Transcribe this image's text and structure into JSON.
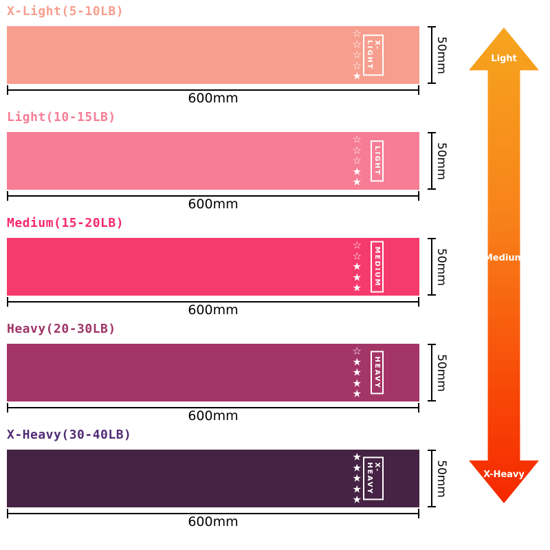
{
  "bands": [
    {
      "title": "X-Light(5-10LB)",
      "tag": "X-LIGHT",
      "color": "#f79e8e",
      "title_color": "#f79e8e",
      "stars_filled": 1,
      "stars_total": 5,
      "length_label": "600mm",
      "width_label": "50mm"
    },
    {
      "title": "Light(10-15LB)",
      "tag": "LIGHT",
      "color": "#f67d95",
      "title_color": "#f67d95",
      "stars_filled": 2,
      "stars_total": 5,
      "length_label": "600mm",
      "width_label": "50mm"
    },
    {
      "title": "Medium(15-20LB)",
      "tag": "MEDIUM",
      "color": "#f53a6c",
      "title_color": "#f5286b",
      "stars_filled": 3,
      "stars_total": 5,
      "length_label": "600mm",
      "width_label": "50mm"
    },
    {
      "title": "Heavy(20-30LB)",
      "tag": "HEAVY",
      "color": "#a43567",
      "title_color": "#9e3366",
      "stars_filled": 4,
      "stars_total": 5,
      "length_label": "600mm",
      "width_label": "50mm"
    },
    {
      "title": "X-Heavy(30-40LB)",
      "tag": "X-HEAVY",
      "color": "#462344",
      "title_color": "#512b75",
      "stars_filled": 5,
      "stars_total": 5,
      "length_label": "600mm",
      "width_label": "50mm"
    }
  ],
  "arrow": {
    "labels": {
      "top": "Light",
      "middle": "Medium",
      "bottom": "X-Heavy"
    },
    "gradient": [
      "#f6a51e",
      "#f8821a",
      "#f84a08",
      "#f62800"
    ],
    "label_color": "#ffffff"
  }
}
